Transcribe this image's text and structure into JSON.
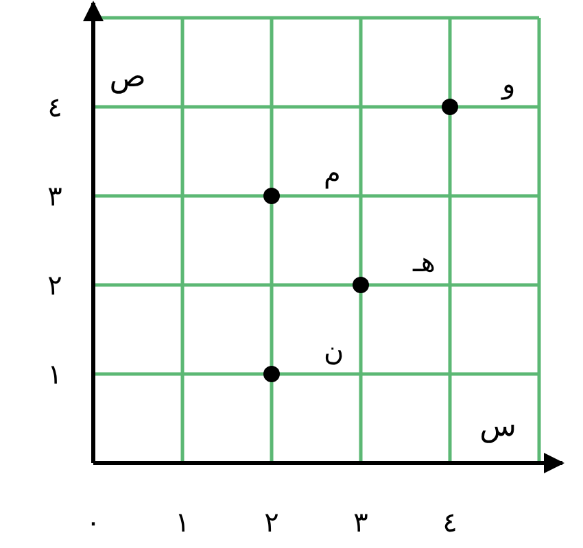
{
  "chart_data": {
    "type": "scatter",
    "xlabel": "س",
    "ylabel": "ص",
    "x": [
      2,
      2,
      3,
      4
    ],
    "values": [
      1,
      3,
      2,
      4
    ],
    "color": "#000000",
    "marker": "circle",
    "xlim": [
      0,
      5
    ],
    "ylim": [
      0,
      5
    ],
    "xticks": [
      {
        "value": 0,
        "label": "٠"
      },
      {
        "value": 1,
        "label": "١"
      },
      {
        "value": 2,
        "label": "٢"
      },
      {
        "value": 3,
        "label": "٣"
      },
      {
        "value": 4,
        "label": "٤"
      },
      {
        "value": 5,
        "label": null
      }
    ],
    "yticks": [
      {
        "value": 1,
        "label": "١"
      },
      {
        "value": 2,
        "label": "٢"
      },
      {
        "value": 3,
        "label": "٣"
      },
      {
        "value": 4,
        "label": "٤"
      },
      {
        "value": 5,
        "label": null
      }
    ],
    "grid": true,
    "annotations": [
      {
        "text": "ن",
        "x": 2,
        "y": 1
      },
      {
        "text": "م",
        "x": 2,
        "y": 3
      },
      {
        "text": "هـ",
        "x": 3,
        "y": 2
      },
      {
        "text": "و",
        "x": 4,
        "y": 4
      }
    ]
  }
}
